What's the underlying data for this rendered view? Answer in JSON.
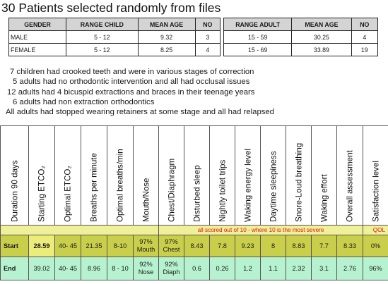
{
  "title": "30 Patients selected randomly from files",
  "demographics": {
    "headers": [
      "GENDER",
      "RANGE CHILD",
      "MEAN AGE",
      "NO",
      "RANGE ADULT",
      "MEAN AGE",
      "NO"
    ],
    "rows": [
      [
        "MALE",
        "5 - 12",
        "9.32",
        "3",
        "15 - 59",
        "30.25",
        "4"
      ],
      [
        "FEMALE",
        "5 - 12",
        "8.25",
        "4",
        "15 - 69",
        "33.89",
        "19"
      ]
    ]
  },
  "notes": [
    "7 children had crooked teeth and were in various stages of correction",
    "5 adults had no orthodontic intervention and all had occlusal issues",
    "12 adults had 4 bicuspid extractions and braces in their teenage years",
    "6 adults had non extraction orthodontics",
    "All adults had stopped wearing retainers at some stage and all had relapsed"
  ],
  "outcomes": {
    "headers": [
      "Duration 90 days",
      "Starting ETCO₂",
      "Optimal ETCO₂",
      "Breaths per minute",
      "Optimal breaths/min",
      "Mouth/Nose",
      "Chest/Diaphragm",
      "Disturbed sleep",
      "Nightly toilet trips",
      "Waking energy level",
      "Daytime sleepiness",
      "Snore-Loud breathing",
      "Waking effort",
      "Overall assessment",
      "Satisfaction level"
    ],
    "scale_note": "all scored out of 10 - where 10 is the most severe",
    "qol_label": "QOL",
    "start": {
      "label": "Start",
      "values": [
        "28.59",
        "40- 45",
        "21.35",
        "8-10",
        "97%",
        "97%",
        "8.43",
        "7.8",
        "9.23",
        "8",
        "8.83",
        "7.7",
        "8.33",
        "0%"
      ],
      "sub": {
        "mouth_nose": "Mouth",
        "chest_diaphragm": "Chest"
      }
    },
    "end": {
      "label": "End",
      "values": [
        "39.02",
        "40- 45",
        "8.96",
        "8 - 10",
        "92%",
        "92%",
        "0.6",
        "0.26",
        "1.2",
        "1.1",
        "2.32",
        "3.1",
        "2.76",
        "96%"
      ],
      "sub": {
        "mouth_nose": "Nose",
        "chest_diaphragm": "Diaph"
      }
    }
  },
  "colors": {
    "note_text": "#e0191b",
    "note_band": "#f0ef9a",
    "start_row": "#c9cf4a",
    "end_row": "#b6f2cf",
    "demo_header": "#d4d4d4"
  }
}
